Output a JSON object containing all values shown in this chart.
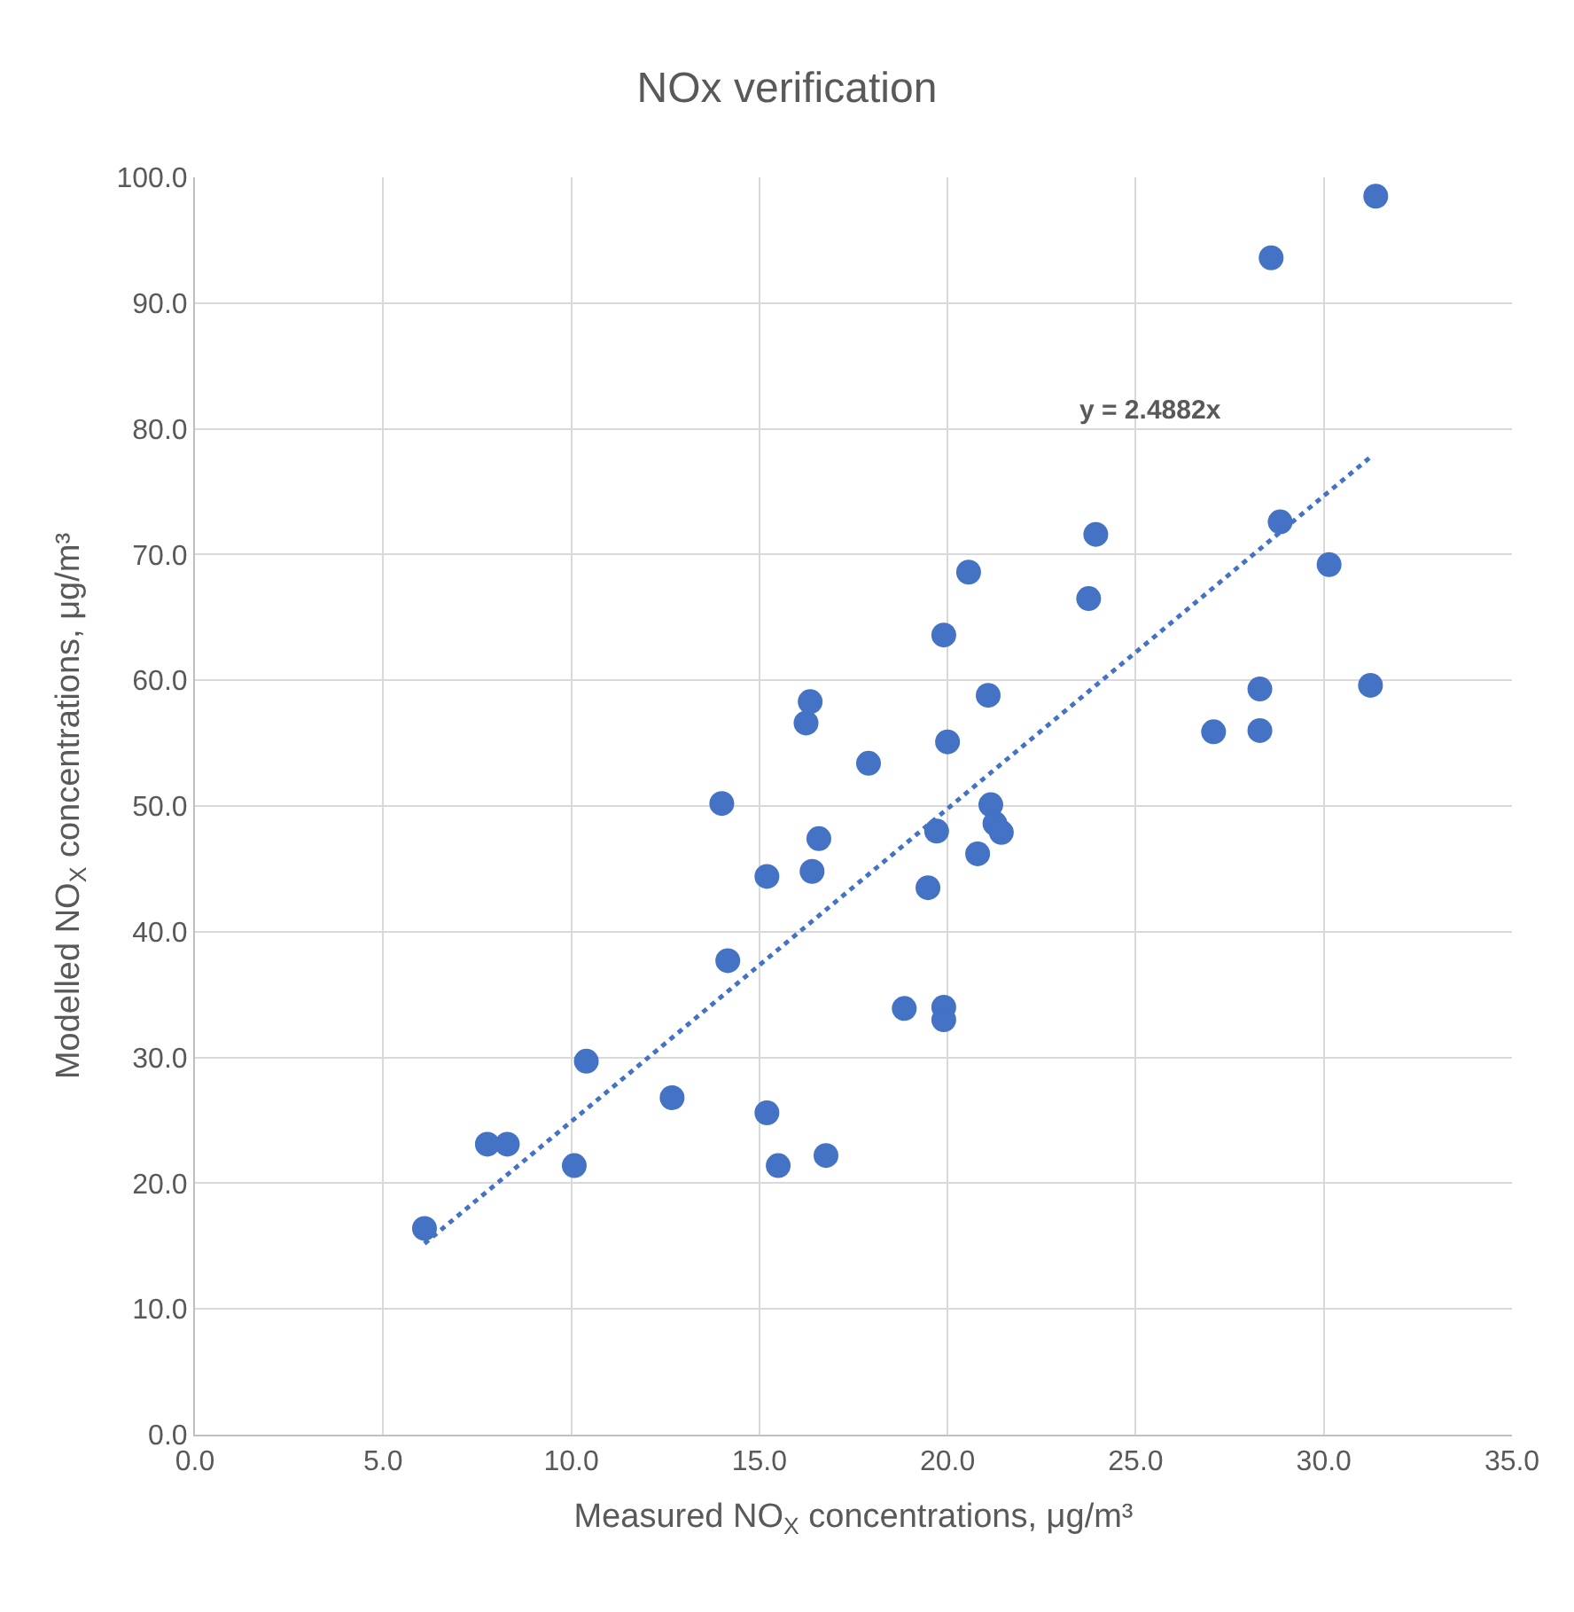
{
  "chart_data": {
    "type": "scatter",
    "title": "NOx verification",
    "xlabel": "Measured NO$_{X}$ concentrations, μg/m³",
    "ylabel": "Modelled NO$_{X}$ concentrations, μg/m³",
    "series": [
      {
        "color": "#4472c4",
        "marker": "circle",
        "x": [
          6.1,
          7.77,
          8.3,
          10.08,
          10.4,
          12.68,
          15.2,
          15.5,
          16.77,
          14.0,
          14.16,
          15.2,
          16.4,
          16.58,
          16.24,
          16.35,
          17.9,
          18.85,
          19.9,
          19.9,
          19.48,
          19.71,
          19.9,
          20.0,
          20.56,
          20.8,
          21.15,
          21.26,
          21.43,
          21.08,
          23.75,
          23.94,
          27.07,
          28.3,
          28.3,
          28.6,
          28.84,
          30.14,
          31.24,
          31.38
        ],
        "values": [
          16.4,
          23.1,
          23.1,
          21.4,
          29.7,
          26.8,
          25.6,
          21.4,
          22.2,
          50.2,
          37.7,
          44.4,
          44.8,
          47.4,
          56.6,
          58.3,
          53.4,
          33.9,
          34.0,
          33.0,
          43.5,
          48.0,
          63.6,
          55.1,
          68.6,
          46.2,
          50.1,
          48.6,
          47.9,
          58.8,
          66.5,
          71.6,
          55.9,
          56.0,
          59.3,
          93.6,
          72.6,
          69.2,
          59.6,
          98.5
        ]
      },
      {
        "type": "line",
        "color": "#4472c4",
        "line_style": "dotted",
        "marker": "none",
        "x": [
          6.1,
          31.3
        ],
        "values": [
          15.2,
          77.9
        ]
      }
    ],
    "annotations": [
      "y = 2.4882x"
    ],
    "xlim": [
      0,
      35
    ],
    "ylim": [
      0,
      100
    ],
    "xticks": [
      {
        "value": 0,
        "label": "0.0"
      },
      {
        "value": 5,
        "label": "5.0"
      },
      {
        "value": 10,
        "label": "10.0"
      },
      {
        "value": 15,
        "label": "15.0"
      },
      {
        "value": 20,
        "label": "20.0"
      },
      {
        "value": 25,
        "label": "25.0"
      },
      {
        "value": 30,
        "label": "30.0"
      },
      {
        "value": 35,
        "label": "35.0"
      }
    ],
    "yticks": [
      {
        "value": 0,
        "label": "0.0"
      },
      {
        "value": 10,
        "label": "10.0"
      },
      {
        "value": 20,
        "label": "20.0"
      },
      {
        "value": 30,
        "label": "30.0"
      },
      {
        "value": 40,
        "label": "40.0"
      },
      {
        "value": 50,
        "label": "50.0"
      },
      {
        "value": 60,
        "label": "60.0"
      },
      {
        "value": 70,
        "label": "70.0"
      },
      {
        "value": 80,
        "label": "80.0"
      },
      {
        "value": 90,
        "label": "90.0"
      },
      {
        "value": 100,
        "label": "100.0"
      }
    ],
    "grid": true
  }
}
